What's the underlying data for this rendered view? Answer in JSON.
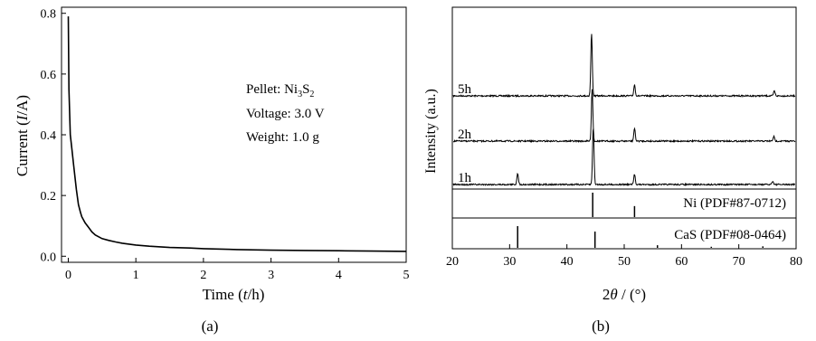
{
  "panel_a": {
    "caption": "(a)",
    "xlabel": {
      "pre": "Time (",
      "var": "t",
      "post": "/h)"
    },
    "ylabel": {
      "pre": "Current (",
      "var": "I",
      "post": "/A)"
    },
    "annotation": {
      "pellet_label": "Pellet: Ni",
      "pellet_sub1": "3",
      "pellet_mid": "S",
      "pellet_sub2": "2",
      "voltage": "Voltage: 3.0 V",
      "weight": "Weight: 1.0 g"
    }
  },
  "panel_b": {
    "caption": "(b)",
    "xlabel": {
      "pre": "2",
      "var": "θ",
      "post": " / (°)"
    },
    "ylabel": "Intensity (a.u.)",
    "ref_labels": [
      "Ni (PDF#87-0712)",
      "CaS (PDF#08-0464)"
    ]
  },
  "chart_data": [
    {
      "type": "line",
      "title": "",
      "xlabel": "Time (t/h)",
      "ylabel": "Current (I/A)",
      "xlim": [
        -0.1,
        5
      ],
      "ylim": [
        -0.02,
        0.82
      ],
      "xticks": [
        0,
        1,
        2,
        3,
        4,
        5
      ],
      "yticks": [
        0.0,
        0.2,
        0.4,
        0.6,
        0.8
      ],
      "series": [
        {
          "x": [
            0,
            0.01,
            0.03,
            0.05,
            0.08,
            0.1,
            0.12,
            0.15,
            0.18,
            0.2,
            0.25,
            0.3,
            0.35,
            0.4,
            0.5,
            0.6,
            0.7,
            0.8,
            0.9,
            1.0,
            1.2,
            1.5,
            1.8,
            2.0,
            2.5,
            3.0,
            3.5,
            4.0,
            4.5,
            5.0
          ],
          "y": [
            0.79,
            0.55,
            0.4,
            0.36,
            0.3,
            0.26,
            0.22,
            0.17,
            0.145,
            0.13,
            0.11,
            0.095,
            0.08,
            0.07,
            0.058,
            0.052,
            0.047,
            0.043,
            0.04,
            0.037,
            0.033,
            0.029,
            0.027,
            0.025,
            0.022,
            0.02,
            0.019,
            0.018,
            0.017,
            0.016
          ]
        }
      ],
      "annotations": [
        "Pellet: Ni3S2",
        "Voltage: 3.0 V",
        "Weight: 1.0 g"
      ]
    },
    {
      "type": "line",
      "title": "",
      "xlabel": "2θ / (°)",
      "ylabel": "Intensity (a.u.)",
      "xlim": [
        20,
        80
      ],
      "xticks": [
        20,
        30,
        40,
        50,
        60,
        70,
        80
      ],
      "series": [
        {
          "name": "5h",
          "peaks": [
            [
              44.3,
              1.0
            ],
            [
              51.8,
              0.18
            ],
            [
              76.2,
              0.08
            ]
          ]
        },
        {
          "name": "2h",
          "peaks": [
            [
              44.4,
              0.9
            ],
            [
              51.8,
              0.22
            ],
            [
              76.1,
              0.08
            ]
          ]
        },
        {
          "name": "1h",
          "peaks": [
            [
              31.4,
              0.2
            ],
            [
              44.6,
              1.0
            ],
            [
              51.8,
              0.18
            ],
            [
              75.9,
              0.06
            ]
          ]
        }
      ],
      "reference_patterns": [
        {
          "name": "Ni (PDF#87-0712)",
          "lines": [
            [
              44.5,
              1.0
            ],
            [
              51.8,
              0.45
            ]
          ]
        },
        {
          "name": "CaS (PDF#08-0464)",
          "lines": [
            [
              31.4,
              1.0
            ],
            [
              44.9,
              0.75
            ],
            [
              55.8,
              0.12
            ],
            [
              65.2,
              0.05
            ],
            [
              74.2,
              0.07
            ]
          ]
        }
      ]
    }
  ]
}
